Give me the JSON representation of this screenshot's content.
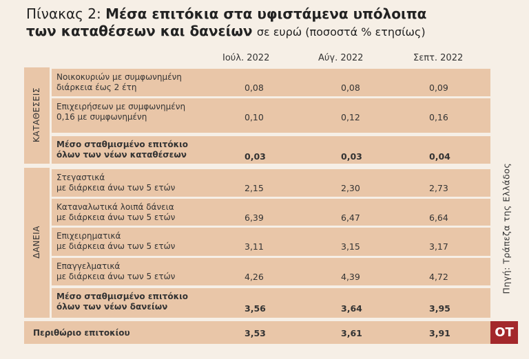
{
  "header": {
    "title_prefix": "Πίνακας 2:",
    "title": "Μέσα επιτόκια στα υφιστάμενα υπόλοιπα\nτων καταθέσεων και δανείων",
    "title_unit": "σε ευρώ (ποσοστά % ετησίως)"
  },
  "table": {
    "columns": [
      "Ιούλ. 2022",
      "Αύγ. 2022",
      "Σεπτ. 2022"
    ],
    "sections": [
      {
        "label": "ΚΑΤΑΘΕΣΕΙΣ",
        "rows": [
          {
            "label": "Νοικοκυριών με συμφωνημένη\nδιάρκεια έως 2 έτη",
            "values": [
              "0,08",
              "0,08",
              "0,09"
            ]
          },
          {
            "label": "Επιχειρήσεων με συμφωνημένη\n0,16 με συμφωνημένη",
            "values": [
              "0,10",
              "0,12",
              "0,16"
            ]
          },
          {
            "label": "Μέσο σταθμισμένο επιτόκιο\nόλων των νέων καταθέσεων",
            "values": [
              "0,03",
              "0,03",
              "0,04"
            ]
          }
        ]
      },
      {
        "label": "ΔΑΝΕΙΑ",
        "rows": [
          {
            "label": "Στεγαστικά\nμε διάρκεια άνω των 5 ετών",
            "values": [
              "2,15",
              "2,30",
              "2,73"
            ]
          },
          {
            "label": "Καταναλωτικά λοιπά δάνεια\nμε διάρκεια άνω των 5 ετών",
            "values": [
              "6,39",
              "6,47",
              "6,64"
            ]
          },
          {
            "label": "Επιχειρηματικά\nμε διάρκεια άνω των 5 ετών",
            "values": [
              "3,11",
              "3,15",
              "3,17"
            ]
          },
          {
            "label": "Επαγγελματικά\nμε διάρκεια άνω των 5 ετών",
            "values": [
              "4,26",
              "4,39",
              "4,72"
            ]
          },
          {
            "label": "Μέσο σταθμισμένο επιτόκιο\nόλων των νέων δανείων",
            "values": [
              "3,56",
              "3,64",
              "3,95"
            ]
          }
        ]
      }
    ],
    "margin_row": {
      "label": "Περιθώριο επιτοκίου",
      "values": [
        "3,53",
        "3,61",
        "3,91"
      ]
    }
  },
  "source": "Πηγή: Τράπεζα της Ελλάδος",
  "logo": "ΟΤ"
}
